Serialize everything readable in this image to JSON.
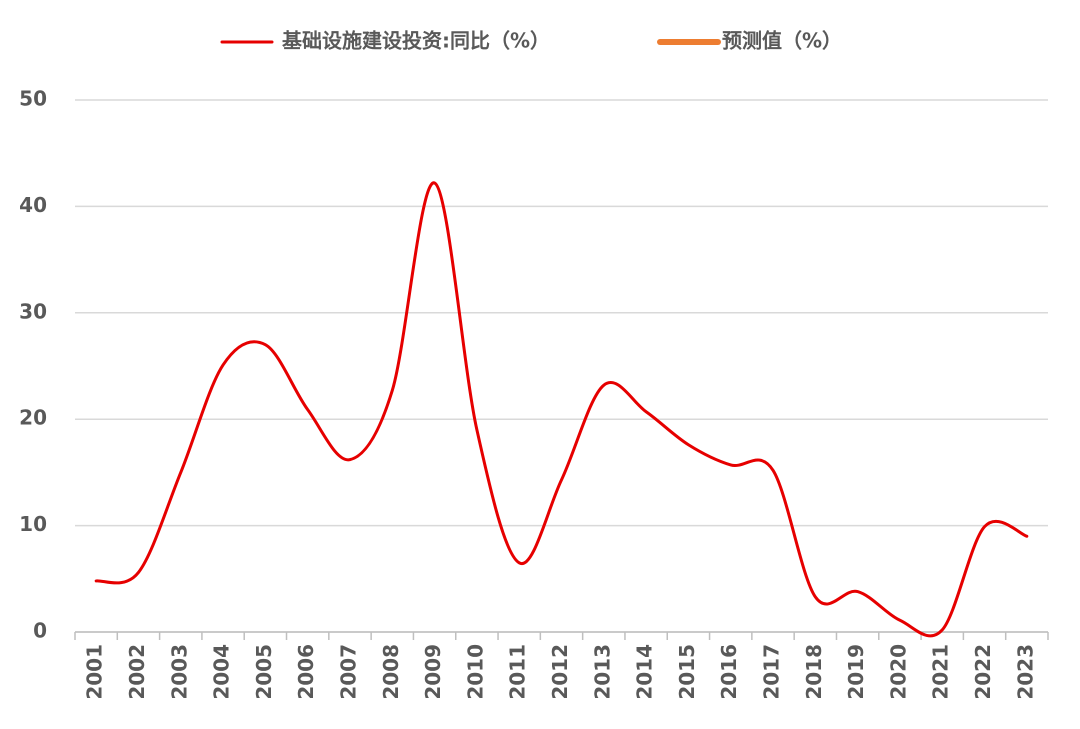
{
  "chart_data": {
    "type": "line",
    "categories": [
      "2001",
      "2002",
      "2003",
      "2004",
      "2005",
      "2006",
      "2007",
      "2008",
      "2009",
      "2010",
      "2011",
      "2012",
      "2013",
      "2014",
      "2015",
      "2016",
      "2017",
      "2018",
      "2019",
      "2020",
      "2021",
      "2022",
      "2023"
    ],
    "series": [
      {
        "name": "基础设施建设投资:同比（%）",
        "color": "#e60000",
        "values": [
          4.8,
          5.6,
          15,
          25.1,
          27,
          20.9,
          16.2,
          22.7,
          42.2,
          19,
          6.5,
          14.3,
          23.2,
          20.7,
          17.6,
          15.7,
          15.2,
          3.3,
          3.8,
          1.1,
          0.2,
          9.9,
          9.0
        ]
      },
      {
        "name": "预测值（%）",
        "color": "#ed7d31",
        "values": [
          null,
          null,
          null,
          null,
          null,
          null,
          null,
          null,
          null,
          null,
          null,
          null,
          null,
          null,
          null,
          null,
          null,
          null,
          null,
          null,
          null,
          null,
          null
        ]
      }
    ],
    "ylim": [
      0,
      50
    ],
    "yticks": [
      0,
      10,
      20,
      30,
      40,
      50
    ],
    "grid": true,
    "legend": "top"
  }
}
